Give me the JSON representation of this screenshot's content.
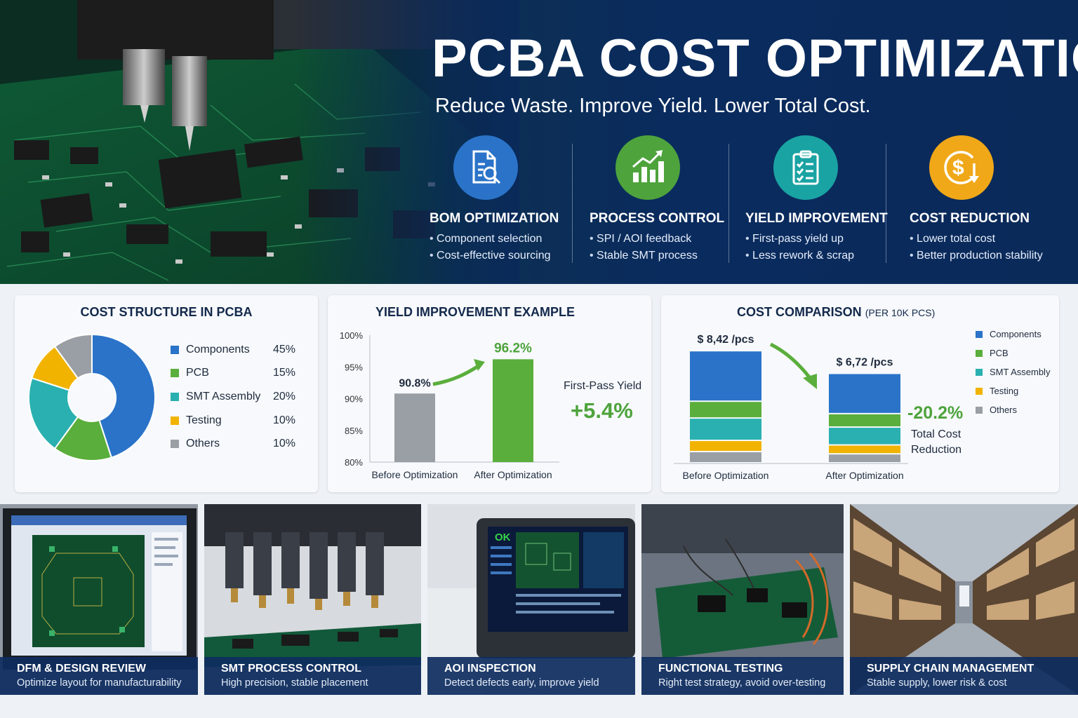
{
  "hero": {
    "title": "PCBA COST OPTIMIZATION",
    "subtitle": "Reduce Waste. Improve Yield. Lower Total Cost.",
    "pillars": [
      {
        "title": "BOM OPTIMIZATION",
        "icon": "document-search-icon",
        "color": "#2a73c9",
        "bullets": [
          "Component selection",
          "Cost-effective sourcing"
        ]
      },
      {
        "title": "PROCESS CONTROL",
        "icon": "growth-chart-icon",
        "color": "#4ea33c",
        "bullets": [
          "SPI / AOI feedback",
          "Stable SMT process"
        ]
      },
      {
        "title": "YIELD IMPROVEMENT",
        "icon": "checklist-icon",
        "color": "#1aa3a3",
        "bullets": [
          "First-pass yield up",
          "Less rework & scrap"
        ]
      },
      {
        "title": "COST REDUCTION",
        "icon": "dollar-down-icon",
        "color": "#f0a818",
        "bullets": [
          "Lower total cost",
          "Better production stability"
        ]
      }
    ]
  },
  "colors": {
    "components": "#2a73c9",
    "pcb": "#5aae3c",
    "smt": "#2ab0b0",
    "testing": "#f2b300",
    "others": "#9a9ea5"
  },
  "cost_structure": {
    "title": "COST STRUCTURE IN PCBA",
    "chart_data": {
      "type": "pie",
      "categories": [
        "Components",
        "PCB",
        "SMT Assembly",
        "Testing",
        "Others"
      ],
      "values": [
        45,
        15,
        20,
        10,
        10
      ],
      "labels": [
        "45%",
        "15%",
        "20%",
        "10%",
        "10%"
      ]
    }
  },
  "yield_chart": {
    "title": "YIELD IMPROVEMENT EXAMPLE",
    "side_label": "First-Pass Yield",
    "gain": "+5.4%",
    "chart_data": {
      "type": "bar",
      "categories": [
        "Before Optimization",
        "After Optimization"
      ],
      "values": [
        90.8,
        96.2
      ],
      "value_labels": [
        "90.8%",
        "96.2%"
      ],
      "ylim": [
        80,
        100
      ],
      "ticks": [
        "80%",
        "85%",
        "90%",
        "95%",
        "100%"
      ],
      "tick_values": [
        80,
        85,
        90,
        95,
        100
      ]
    }
  },
  "cost_comparison": {
    "title": "COST COMPARISON",
    "title_suffix": "(PER 10K PCS)",
    "reduction": "-20.2%",
    "reduction_label_1": "Total Cost",
    "reduction_label_2": "Reduction",
    "chart_data": {
      "type": "bar",
      "stacked": true,
      "categories": [
        "Before Optimization",
        "After Optimization"
      ],
      "totals": [
        "$ 8,42 /pcs",
        "$ 6,72 /pcs"
      ],
      "total_values": [
        8.42,
        6.72
      ],
      "series": [
        {
          "name": "Components",
          "values": [
            3.79,
            3.02
          ]
        },
        {
          "name": "PCB",
          "values": [
            1.26,
            1.01
          ]
        },
        {
          "name": "SMT Assembly",
          "values": [
            1.68,
            1.34
          ]
        },
        {
          "name": "Testing",
          "values": [
            0.84,
            0.67
          ]
        },
        {
          "name": "Others",
          "values": [
            0.84,
            0.67
          ]
        }
      ]
    }
  },
  "tiles": [
    {
      "title": "DFM & DESIGN REVIEW",
      "desc": "Optimize layout for manufacturability"
    },
    {
      "title": "SMT PROCESS CONTROL",
      "desc": "High precision, stable placement"
    },
    {
      "title": "AOI INSPECTION",
      "desc": "Detect defects early, improve yield",
      "screen_text": "OK"
    },
    {
      "title": "FUNCTIONAL TESTING",
      "desc": "Right test strategy, avoid over-testing"
    },
    {
      "title": "SUPPLY CHAIN MANAGEMENT",
      "desc": "Stable supply, lower risk & cost"
    }
  ]
}
